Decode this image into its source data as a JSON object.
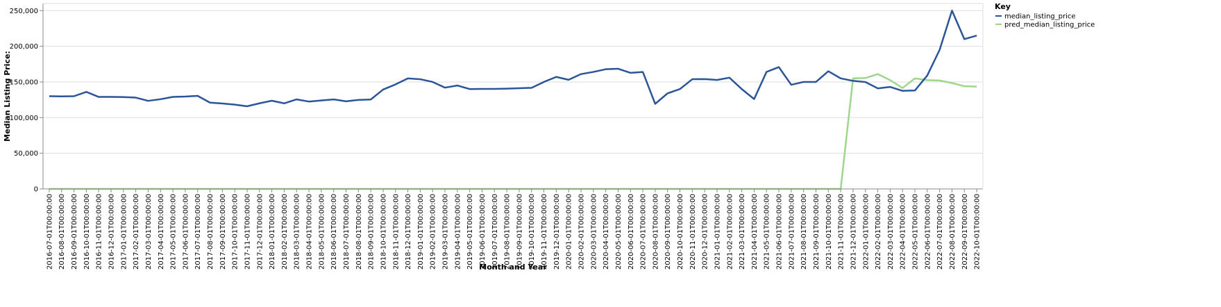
{
  "chart_data": {
    "type": "line",
    "xlabel": "Month and Year",
    "ylabel": "Median Listing Price:",
    "ylim": [
      0,
      260000
    ],
    "yticks": [
      0,
      50000,
      100000,
      150000,
      200000,
      250000
    ],
    "grid": true,
    "legend": {
      "title": "Key",
      "placement": "top-right"
    },
    "x": [
      "2016-07-01T00:00:00",
      "2016-08-01T00:00:00",
      "2016-09-01T00:00:00",
      "2016-10-01T00:00:00",
      "2016-11-01T00:00:00",
      "2016-12-01T00:00:00",
      "2017-01-01T00:00:00",
      "2017-02-01T00:00:00",
      "2017-03-01T00:00:00",
      "2017-04-01T00:00:00",
      "2017-05-01T00:00:00",
      "2017-06-01T00:00:00",
      "2017-07-01T00:00:00",
      "2017-08-01T00:00:00",
      "2017-09-01T00:00:00",
      "2017-10-01T00:00:00",
      "2017-11-01T00:00:00",
      "2017-12-01T00:00:00",
      "2018-01-01T00:00:00",
      "2018-02-01T00:00:00",
      "2018-03-01T00:00:00",
      "2018-04-01T00:00:00",
      "2018-05-01T00:00:00",
      "2018-06-01T00:00:00",
      "2018-07-01T00:00:00",
      "2018-08-01T00:00:00",
      "2018-09-01T00:00:00",
      "2018-10-01T00:00:00",
      "2018-11-01T00:00:00",
      "2018-12-01T00:00:00",
      "2019-01-01T00:00:00",
      "2019-02-01T00:00:00",
      "2019-03-01T00:00:00",
      "2019-04-01T00:00:00",
      "2019-05-01T00:00:00",
      "2019-06-01T00:00:00",
      "2019-07-01T00:00:00",
      "2019-08-01T00:00:00",
      "2019-09-01T00:00:00",
      "2019-10-01T00:00:00",
      "2019-11-01T00:00:00",
      "2019-12-01T00:00:00",
      "2020-01-01T00:00:00",
      "2020-02-01T00:00:00",
      "2020-03-01T00:00:00",
      "2020-04-01T00:00:00",
      "2020-05-01T00:00:00",
      "2020-06-01T00:00:00",
      "2020-07-01T00:00:00",
      "2020-08-01T00:00:00",
      "2020-09-01T00:00:00",
      "2020-10-01T00:00:00",
      "2020-11-01T00:00:00",
      "2020-12-01T00:00:00",
      "2021-01-01T00:00:00",
      "2021-02-01T00:00:00",
      "2021-03-01T00:00:00",
      "2021-04-01T00:00:00",
      "2021-05-01T00:00:00",
      "2021-06-01T00:00:00",
      "2021-07-01T00:00:00",
      "2021-08-01T00:00:00",
      "2021-09-01T00:00:00",
      "2021-10-01T00:00:00",
      "2021-11-01T00:00:00",
      "2021-12-01T00:00:00",
      "2022-01-01T00:00:00",
      "2022-02-01T00:00:00",
      "2022-03-01T00:00:00",
      "2022-04-01T00:00:00",
      "2022-05-01T00:00:00",
      "2022-06-01T00:00:00",
      "2022-07-01T00:00:00",
      "2022-08-01T00:00:00",
      "2022-09-01T00:00:00",
      "2022-10-01T00:00:00"
    ],
    "series": [
      {
        "name": "median_listing_price",
        "color": "#2a5599",
        "values": [
          130000,
          129800,
          130000,
          136000,
          129000,
          129000,
          128800,
          128000,
          123500,
          125800,
          129000,
          129500,
          130500,
          121000,
          119800,
          118200,
          115900,
          120000,
          123700,
          120000,
          125500,
          122500,
          124000,
          125500,
          122800,
          124800,
          125400,
          139300,
          146500,
          155000,
          153800,
          150000,
          142000,
          145000,
          140000,
          140200,
          140200,
          140600,
          141200,
          141700,
          150000,
          157000,
          153000,
          161000,
          164000,
          167800,
          168500,
          162700,
          164000,
          119300,
          134000,
          140000,
          153800,
          154000,
          152800,
          156000,
          140000,
          126000,
          164000,
          170800,
          146000,
          150000,
          150000,
          165000,
          155000,
          151500,
          149800,
          141000,
          143000,
          137500,
          138000,
          159000,
          195000,
          250000,
          210000,
          215000
        ]
      },
      {
        "name": "pred_median_listing_price",
        "color": "#9ed68c",
        "values": [
          0,
          0,
          0,
          0,
          0,
          0,
          0,
          0,
          0,
          0,
          0,
          0,
          0,
          0,
          0,
          0,
          0,
          0,
          0,
          0,
          0,
          0,
          0,
          0,
          0,
          0,
          0,
          0,
          0,
          0,
          0,
          0,
          0,
          0,
          0,
          0,
          0,
          0,
          0,
          0,
          0,
          0,
          0,
          0,
          0,
          0,
          0,
          0,
          0,
          0,
          0,
          0,
          0,
          0,
          0,
          0,
          0,
          0,
          0,
          0,
          0,
          0,
          0,
          0,
          0,
          155000,
          155500,
          161000,
          152500,
          141500,
          155000,
          152500,
          152000,
          148500,
          144000,
          143500
        ]
      }
    ]
  }
}
